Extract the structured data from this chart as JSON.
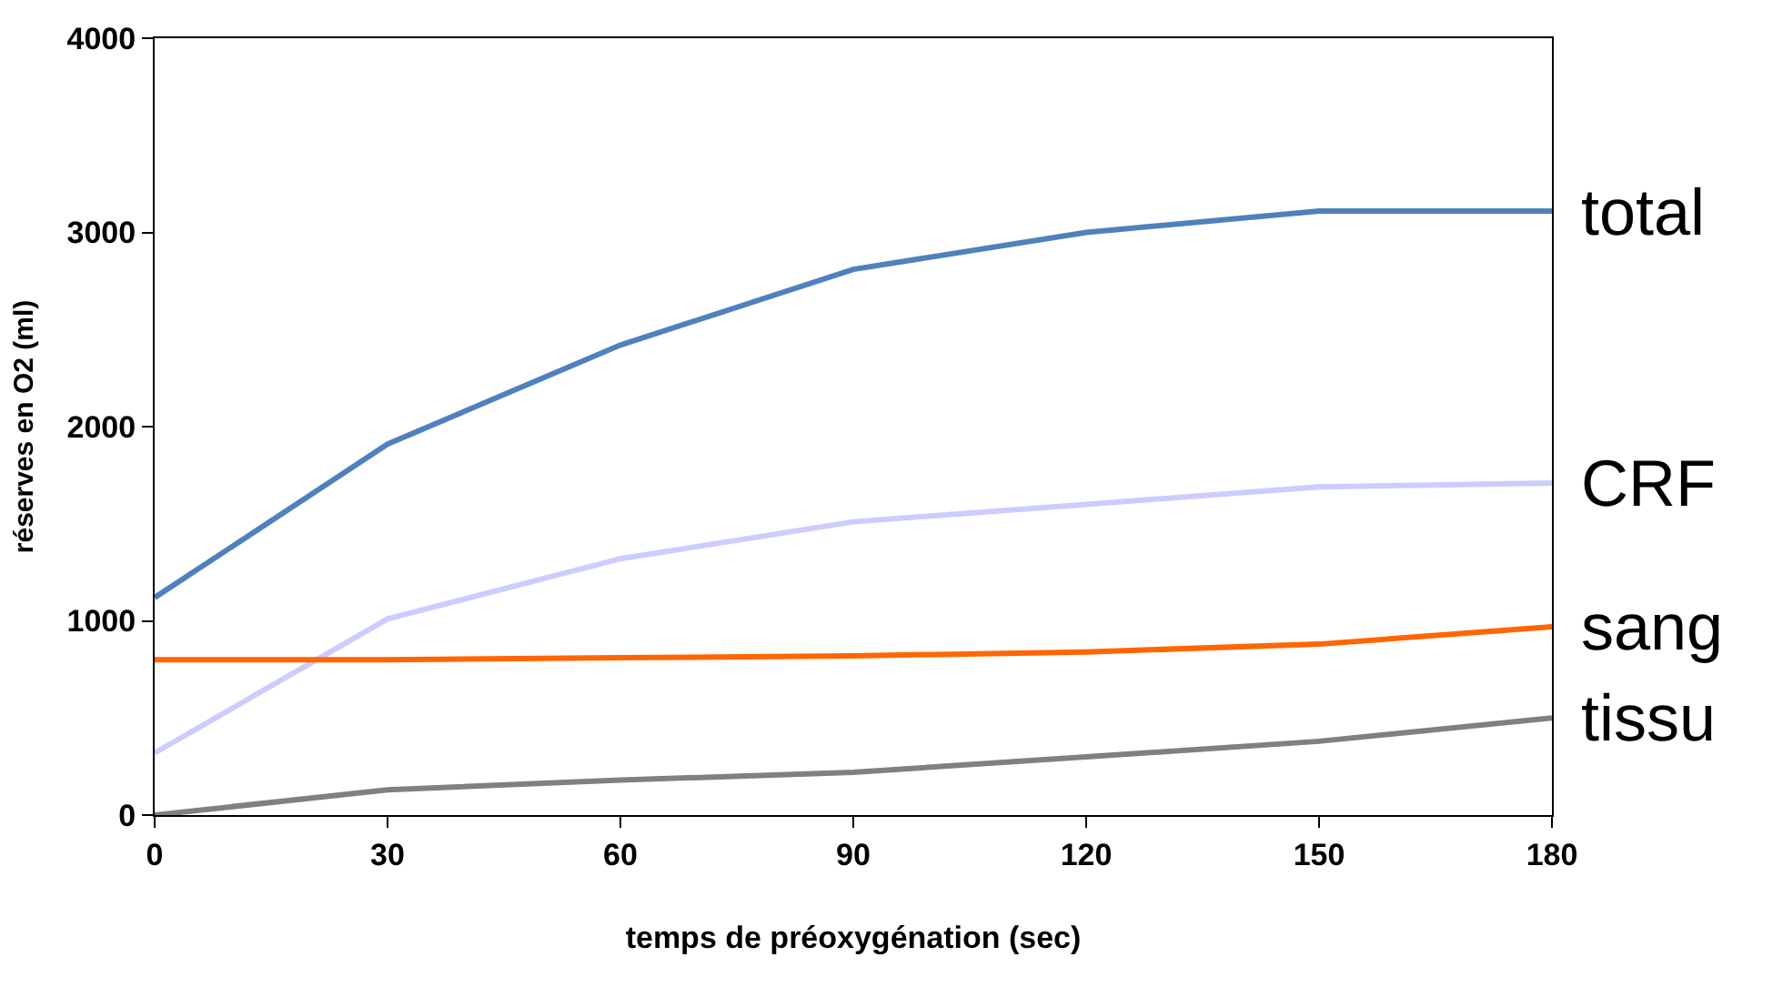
{
  "chart_data": {
    "type": "line",
    "xlabel": "temps de préoxygénation (sec)",
    "ylabel": "réserves en O2 (ml)",
    "x": [
      0,
      30,
      60,
      90,
      120,
      150,
      180
    ],
    "series": [
      {
        "name": "total",
        "color": "#4f81bd",
        "values": [
          1120,
          1910,
          2420,
          2810,
          3000,
          3110,
          3110
        ]
      },
      {
        "name": "CRF",
        "color": "#ccccff",
        "values": [
          320,
          1010,
          1320,
          1510,
          1600,
          1690,
          1710
        ]
      },
      {
        "name": "sang",
        "color": "#ff6600",
        "values": [
          800,
          800,
          810,
          820,
          840,
          880,
          970
        ]
      },
      {
        "name": "tissu",
        "color": "#808080",
        "values": [
          0,
          130,
          180,
          220,
          300,
          380,
          500
        ]
      }
    ],
    "xlim": [
      0,
      180
    ],
    "xticks": [
      0,
      30,
      60,
      90,
      120,
      150,
      180
    ],
    "ylim": [
      0,
      4000
    ],
    "yticks": [
      0,
      1000,
      2000,
      3000,
      4000
    ],
    "legend": false,
    "marker": "none",
    "line_style": "solid"
  }
}
